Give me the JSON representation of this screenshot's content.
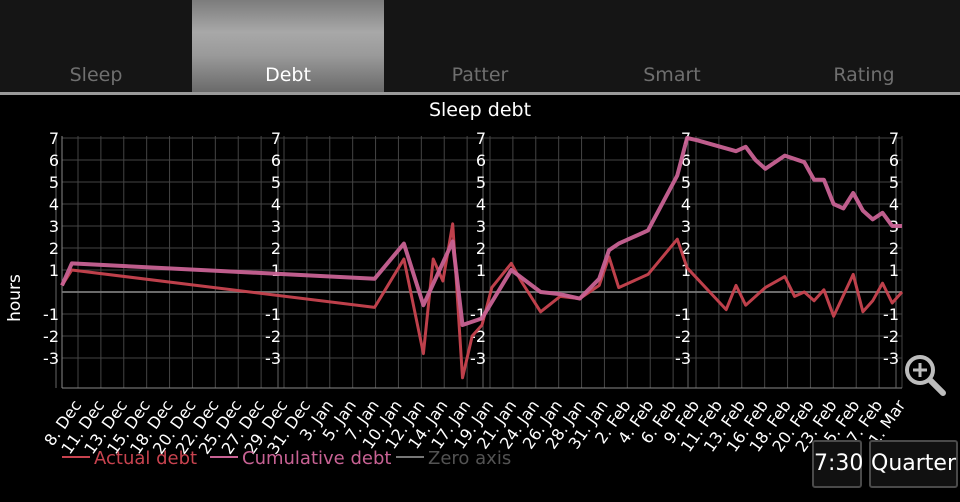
{
  "tabs": [
    {
      "label": "Sleep",
      "active": false
    },
    {
      "label": "Debt",
      "active": true
    },
    {
      "label": "Patter",
      "active": false
    },
    {
      "label": "Smart",
      "active": false
    },
    {
      "label": "Rating",
      "active": false
    }
  ],
  "buttons": {
    "time_label": "7:30",
    "period_label": "Quarter"
  },
  "icons": {
    "zoom": "zoom-in-icon"
  },
  "colors": {
    "actual": "#c8434f",
    "cumulative": "#c86294",
    "zero": "#777777",
    "grid": "#444444"
  },
  "chart_data": {
    "type": "line",
    "title": "Sleep debt",
    "ylabel": "hours",
    "ylim": [
      -4,
      7
    ],
    "yticks": [
      7,
      6,
      5,
      4,
      3,
      2,
      1,
      -1,
      -2,
      -3
    ],
    "x_tick_labels": [
      "8. Dec",
      "11. Dec",
      "13. Dec",
      "15. Dec",
      "18. Dec",
      "20. Dec",
      "22. Dec",
      "25. Dec",
      "27. Dec",
      "29. Dec",
      "31. Dec",
      "3. Jan",
      "5. Jan",
      "7. Jan",
      "10. Jan",
      "12. Jan",
      "14. Jan",
      "17. Jan",
      "19. Jan",
      "21. Jan",
      "24. Jan",
      "26. Jan",
      "28. Jan",
      "31. Jan",
      "2. Feb",
      "4. Feb",
      "6. Feb",
      "9. Feb",
      "11. Feb",
      "13. Feb",
      "16. Feb",
      "18. Feb",
      "20. Feb",
      "23. Feb",
      "25. Feb",
      "27. Feb",
      "1. Mar"
    ],
    "legend": {
      "placement": "bottom-left",
      "entries": [
        "Actual debt",
        "Cumulative debt",
        "Zero axis"
      ]
    },
    "series": [
      {
        "name": "Actual debt",
        "key": "actual",
        "points": [
          [
            "2011-12-06",
            0.3
          ],
          [
            "2011-12-07",
            1.0
          ],
          [
            "2012-01-07",
            -0.7
          ],
          [
            "2012-01-10",
            1.5
          ],
          [
            "2012-01-12",
            -2.8
          ],
          [
            "2012-01-13",
            1.5
          ],
          [
            "2012-01-14",
            0.5
          ],
          [
            "2012-01-15",
            3.1
          ],
          [
            "2012-01-16",
            -3.9
          ],
          [
            "2012-01-17",
            -2.0
          ],
          [
            "2012-01-18",
            -1.5
          ],
          [
            "2012-01-19",
            0.2
          ],
          [
            "2012-01-21",
            1.3
          ],
          [
            "2012-01-22",
            0.5
          ],
          [
            "2012-01-24",
            -0.9
          ],
          [
            "2012-01-26",
            -0.2
          ],
          [
            "2012-01-28",
            -0.3
          ],
          [
            "2012-01-30",
            0.3
          ],
          [
            "2012-01-31",
            1.6
          ],
          [
            "2012-02-01",
            0.2
          ],
          [
            "2012-02-04",
            0.8
          ],
          [
            "2012-02-07",
            2.4
          ],
          [
            "2012-02-08",
            1.1
          ],
          [
            "2012-02-12",
            -0.8
          ],
          [
            "2012-02-13",
            0.3
          ],
          [
            "2012-02-14",
            -0.6
          ],
          [
            "2012-02-16",
            0.2
          ],
          [
            "2012-02-18",
            0.7
          ],
          [
            "2012-02-19",
            -0.2
          ],
          [
            "2012-02-20",
            0.0
          ],
          [
            "2012-02-21",
            -0.4
          ],
          [
            "2012-02-22",
            0.1
          ],
          [
            "2012-02-23",
            -1.1
          ],
          [
            "2012-02-25",
            0.8
          ],
          [
            "2012-02-26",
            -0.9
          ],
          [
            "2012-02-27",
            -0.4
          ],
          [
            "2012-02-28",
            0.4
          ],
          [
            "2012-02-29",
            -0.5
          ],
          [
            "2012-03-01",
            0.0
          ]
        ]
      },
      {
        "name": "Cumulative debt",
        "key": "cumulative",
        "points": [
          [
            "2011-12-06",
            0.3
          ],
          [
            "2011-12-07",
            1.3
          ],
          [
            "2012-01-07",
            0.6
          ],
          [
            "2012-01-10",
            2.2
          ],
          [
            "2012-01-12",
            -0.6
          ],
          [
            "2012-01-15",
            2.3
          ],
          [
            "2012-01-16",
            -1.5
          ],
          [
            "2012-01-18",
            -1.2
          ],
          [
            "2012-01-21",
            1.0
          ],
          [
            "2012-01-24",
            0.0
          ],
          [
            "2012-01-26",
            -0.1
          ],
          [
            "2012-01-28",
            -0.3
          ],
          [
            "2012-01-30",
            0.6
          ],
          [
            "2012-01-31",
            1.9
          ],
          [
            "2012-02-01",
            2.2
          ],
          [
            "2012-02-04",
            2.8
          ],
          [
            "2012-02-07",
            5.3
          ],
          [
            "2012-02-08",
            7.0
          ],
          [
            "2012-02-09",
            6.9
          ],
          [
            "2012-02-13",
            6.4
          ],
          [
            "2012-02-14",
            6.6
          ],
          [
            "2012-02-15",
            6.0
          ],
          [
            "2012-02-16",
            5.6
          ],
          [
            "2012-02-18",
            6.2
          ],
          [
            "2012-02-20",
            5.9
          ],
          [
            "2012-02-21",
            5.1
          ],
          [
            "2012-02-22",
            5.1
          ],
          [
            "2012-02-23",
            4.0
          ],
          [
            "2012-02-24",
            3.8
          ],
          [
            "2012-02-25",
            4.5
          ],
          [
            "2012-02-26",
            3.7
          ],
          [
            "2012-02-27",
            3.3
          ],
          [
            "2012-02-28",
            3.6
          ],
          [
            "2012-02-29",
            3.0
          ],
          [
            "2012-03-01",
            3.0
          ]
        ]
      },
      {
        "name": "Zero axis",
        "key": "zero",
        "points": [
          [
            "2011-12-06",
            0
          ],
          [
            "2012-03-01",
            0
          ]
        ]
      }
    ]
  }
}
